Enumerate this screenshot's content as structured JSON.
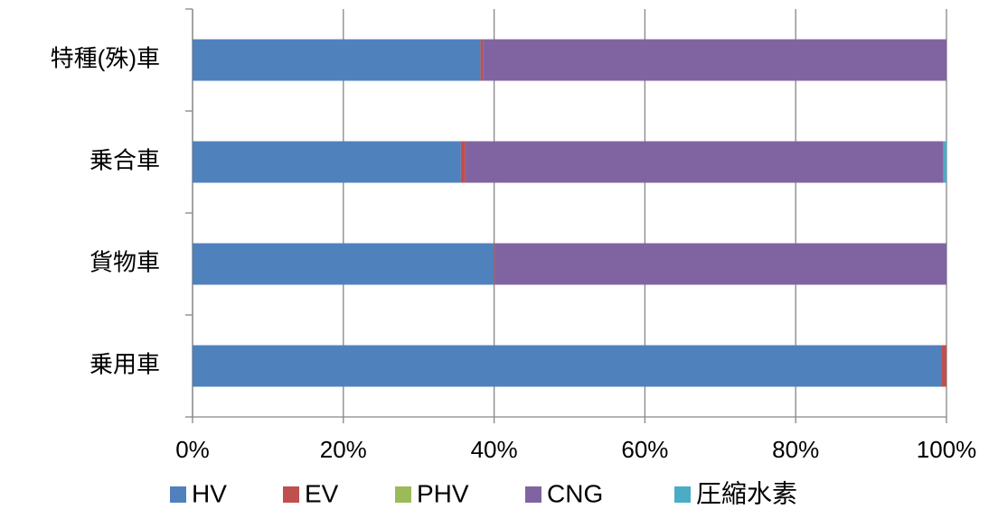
{
  "chart_data": {
    "type": "stacked_bar_horizontal",
    "categories": [
      "乗用車",
      "貨物車",
      "乗合車",
      "特種(殊)車"
    ],
    "series": [
      {
        "name": "HV",
        "color": "#4f81bd",
        "values": [
          99.4,
          40.0,
          35.6,
          38.2
        ]
      },
      {
        "name": "EV",
        "color": "#c0504d",
        "values": [
          0.6,
          0.1,
          0.6,
          0.3
        ]
      },
      {
        "name": "PHV",
        "color": "#9bbb59",
        "values": [
          0,
          0,
          0,
          0
        ]
      },
      {
        "name": "CNG",
        "color": "#8064a2",
        "values": [
          0,
          59.9,
          63.4,
          61.5
        ]
      },
      {
        "name": "圧縮水素",
        "color": "#4bacc6",
        "values": [
          0,
          0,
          0.4,
          0
        ]
      }
    ],
    "xlim": [
      0,
      100
    ],
    "xticks": [
      {
        "value": 0,
        "label": "0%"
      },
      {
        "value": 20,
        "label": "20%"
      },
      {
        "value": 40,
        "label": "40%"
      },
      {
        "value": 60,
        "label": "60%"
      },
      {
        "value": 80,
        "label": "80%"
      },
      {
        "value": 100,
        "label": "100%"
      }
    ],
    "grid": true,
    "legend": "bottom"
  }
}
